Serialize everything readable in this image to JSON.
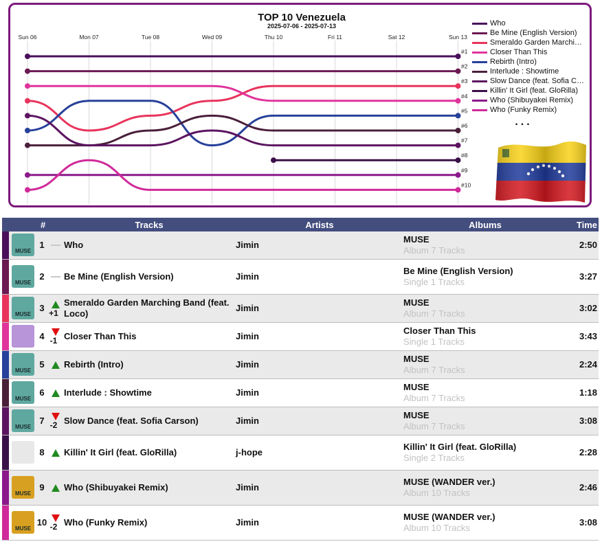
{
  "chart_title": "TOP 10 Venezuela",
  "chart_subtitle": "2025-07-06 - 2025-07-13",
  "legend_more": "...",
  "chart_data": {
    "type": "line",
    "title": "TOP 10 Venezuela",
    "subtitle": "2025-07-06 - 2025-07-13",
    "x": [
      "Sun 06",
      "Mon 07",
      "Tue 08",
      "Wed 09",
      "Thu 10",
      "Fri 11",
      "Sat 12",
      "Sun 13"
    ],
    "y_tick_labels": [
      "#1",
      "#2",
      "#3",
      "#4",
      "#5",
      "#6",
      "#7",
      "#8",
      "#9",
      "#10"
    ],
    "y_inverted": true,
    "grid": true,
    "legend_position": "right",
    "series": [
      {
        "name": "Who",
        "color": "#4a0f5c",
        "ranks": [
          1,
          1,
          1,
          1,
          1,
          1,
          1,
          1
        ]
      },
      {
        "name": "Be Mine (English Version)",
        "color": "#6b1a52",
        "ranks": [
          2,
          2,
          2,
          2,
          2,
          2,
          2,
          2
        ]
      },
      {
        "name": "Smeraldo Garden Marching Band (feat. Loco)",
        "color": "#e8345c",
        "ranks": [
          4,
          6,
          5,
          4,
          3,
          3,
          3,
          3
        ]
      },
      {
        "name": "Closer Than This",
        "color": "#e0349c",
        "ranks": [
          3,
          3,
          3,
          3,
          4,
          4,
          4,
          4
        ]
      },
      {
        "name": "Rebirth (Intro)",
        "color": "#27409a",
        "ranks": [
          6,
          4,
          4,
          7,
          5,
          5,
          5,
          5
        ]
      },
      {
        "name": "Interlude : Showtime",
        "color": "#4a1f3a",
        "ranks": [
          7,
          7,
          6,
          5,
          6,
          6,
          6,
          6
        ]
      },
      {
        "name": "Slow Dance (feat. Sofia Carson)",
        "color": "#5c1461",
        "ranks": [
          5,
          7,
          7,
          6,
          7,
          7,
          7,
          7
        ]
      },
      {
        "name": "Killin' It Girl (feat. GloRilla)",
        "color": "#3a1048",
        "ranks": [
          null,
          null,
          null,
          null,
          8,
          8,
          8,
          8
        ]
      },
      {
        "name": "Who (Shibuyakei Remix)",
        "color": "#8b1a8b",
        "ranks": [
          9,
          9,
          9,
          9,
          9,
          9,
          9,
          9
        ]
      },
      {
        "name": "Who (Funky Remix)",
        "color": "#d02a9a",
        "ranks": [
          10,
          8,
          10,
          10,
          10,
          10,
          10,
          10
        ]
      }
    ]
  },
  "table": {
    "headers": {
      "rank": "#",
      "tracks": "Tracks",
      "artists": "Artists",
      "albums": "Albums",
      "time": "Time"
    },
    "rows": [
      {
        "rank": "1",
        "movement": "same",
        "change": "",
        "track": "Who",
        "artist": "Jimin",
        "album": "MUSE",
        "album_sub": "Album 7 Tracks",
        "time": "2:50",
        "color": "#4a0f5c",
        "cover": "MUSE",
        "cover_bg": "#5fa8a0"
      },
      {
        "rank": "2",
        "movement": "same",
        "change": "",
        "track": "Be Mine (English Version)",
        "artist": "Jimin",
        "album": "Be Mine (English Version)",
        "album_sub": "Single 1 Tracks",
        "time": "3:27",
        "color": "#6b1a52",
        "cover": "MUSE",
        "cover_bg": "#5fa8a0"
      },
      {
        "rank": "3",
        "movement": "up",
        "change": "+1",
        "track": "Smeraldo Garden Marching Band (feat. Loco)",
        "artist": "Jimin",
        "album": "MUSE",
        "album_sub": "Album 7 Tracks",
        "time": "3:02",
        "color": "#e8345c",
        "cover": "MUSE",
        "cover_bg": "#5fa8a0"
      },
      {
        "rank": "4",
        "movement": "down",
        "change": "-1",
        "track": "Closer Than This",
        "artist": "Jimin",
        "album": "Closer Than This",
        "album_sub": "Single 1 Tracks",
        "time": "3:43",
        "color": "#e0349c",
        "cover": "",
        "cover_bg": "#b894d8"
      },
      {
        "rank": "5",
        "movement": "up",
        "change": "",
        "track": "Rebirth (Intro)",
        "artist": "Jimin",
        "album": "MUSE",
        "album_sub": "Album 7 Tracks",
        "time": "2:24",
        "color": "#27409a",
        "cover": "MUSE",
        "cover_bg": "#5fa8a0"
      },
      {
        "rank": "6",
        "movement": "up",
        "change": "",
        "track": "Interlude : Showtime",
        "artist": "Jimin",
        "album": "MUSE",
        "album_sub": "Album 7 Tracks",
        "time": "1:18",
        "color": "#4a1f3a",
        "cover": "MUSE",
        "cover_bg": "#5fa8a0"
      },
      {
        "rank": "7",
        "movement": "down",
        "change": "-2",
        "track": "Slow Dance (feat. Sofia Carson)",
        "artist": "Jimin",
        "album": "MUSE",
        "album_sub": "Album 7 Tracks",
        "time": "3:08",
        "color": "#5c1461",
        "cover": "MUSE",
        "cover_bg": "#5fa8a0"
      },
      {
        "rank": "8",
        "movement": "up",
        "change": "",
        "track": "Killin' It Girl (feat. GloRilla)",
        "artist": "j-hope",
        "album": "Killin' It Girl (feat. GloRilla)",
        "album_sub": "Single 2 Tracks",
        "time": "2:28",
        "color": "#3a1048",
        "cover": "",
        "cover_bg": "#e8e8e8"
      },
      {
        "rank": "9",
        "movement": "up",
        "change": "",
        "track": "Who (Shibuyakei Remix)",
        "artist": "Jimin",
        "album": "MUSE (WANDER ver.)",
        "album_sub": "Album 10 Tracks",
        "time": "2:46",
        "color": "#8b1a8b",
        "cover": "MUSE",
        "cover_bg": "#d8a020"
      },
      {
        "rank": "10",
        "movement": "down",
        "change": "-2",
        "track": "Who (Funky Remix)",
        "artist": "Jimin",
        "album": "MUSE (WANDER ver.)",
        "album_sub": "Album 10 Tracks",
        "time": "3:08",
        "color": "#d02a9a",
        "cover": "MUSE",
        "cover_bg": "#d8a020"
      }
    ]
  }
}
